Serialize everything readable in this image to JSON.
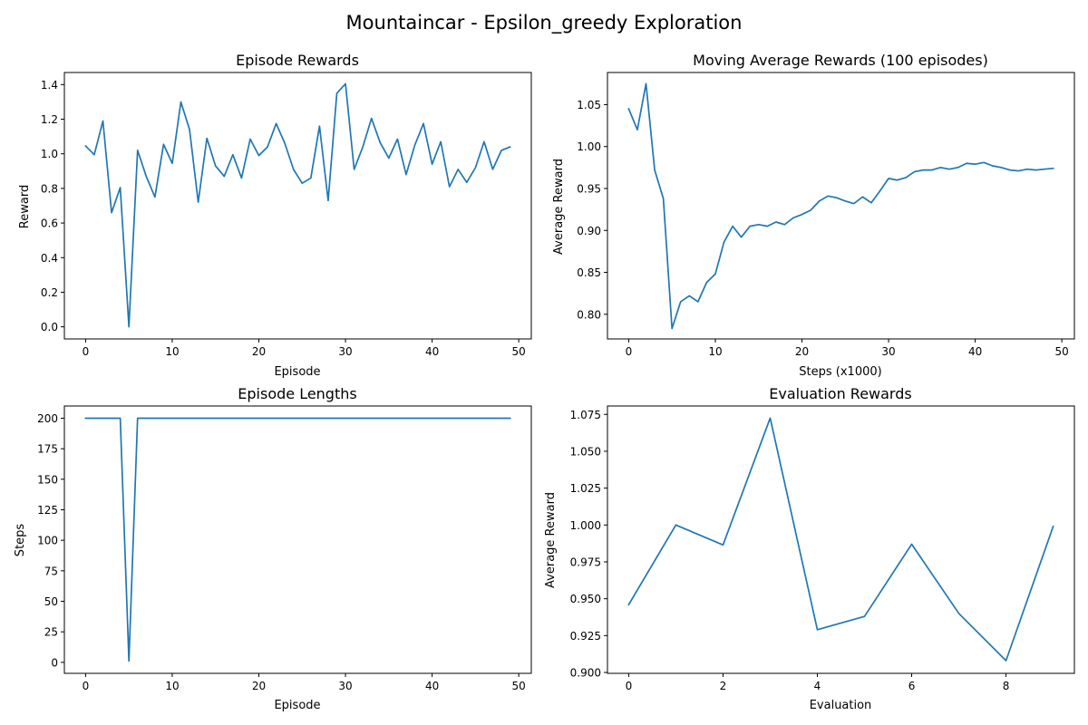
{
  "figure": {
    "title": "Mountaincar - Epsilon_greedy Exploration"
  },
  "line_color": "#1f77b4",
  "chart_data": [
    {
      "type": "line",
      "title": "Episode Rewards",
      "xlabel": "Episode",
      "ylabel": "Reward",
      "xlim": [
        -2.45,
        51.45
      ],
      "ylim": [
        -0.07,
        1.47
      ],
      "xticks": [
        0,
        10,
        20,
        30,
        40,
        50
      ],
      "xtick_labels": [
        "0",
        "10",
        "20",
        "30",
        "40",
        "50"
      ],
      "yticks": [
        0.0,
        0.2,
        0.4,
        0.6,
        0.8,
        1.0,
        1.2,
        1.4
      ],
      "ytick_labels": [
        "0.0",
        "0.2",
        "0.4",
        "0.6",
        "0.8",
        "1.0",
        "1.2",
        "1.4"
      ],
      "x": [
        0,
        1,
        2,
        3,
        4,
        5,
        6,
        7,
        8,
        9,
        10,
        11,
        12,
        13,
        14,
        15,
        16,
        17,
        18,
        19,
        20,
        21,
        22,
        23,
        24,
        25,
        26,
        27,
        28,
        29,
        30,
        31,
        32,
        33,
        34,
        35,
        36,
        37,
        38,
        39,
        40,
        41,
        42,
        43,
        44,
        45,
        46,
        47,
        48,
        49
      ],
      "y": [
        1.045,
        0.995,
        1.19,
        0.66,
        0.805,
        0.0,
        1.02,
        0.87,
        0.75,
        1.055,
        0.945,
        1.3,
        1.14,
        0.72,
        1.09,
        0.93,
        0.87,
        0.995,
        0.86,
        1.085,
        0.99,
        1.04,
        1.175,
        1.06,
        0.91,
        0.83,
        0.86,
        1.16,
        0.73,
        1.35,
        1.405,
        0.91,
        1.04,
        1.205,
        1.065,
        0.975,
        1.085,
        0.88,
        1.05,
        1.175,
        0.94,
        1.07,
        0.81,
        0.91,
        0.835,
        0.92,
        1.07,
        0.91,
        1.02,
        1.04
      ]
    },
    {
      "type": "line",
      "title": "Moving Average Rewards (100 episodes)",
      "xlabel": "Steps (x1000)",
      "ylabel": "Average Reward",
      "xlim": [
        -2.45,
        51.45
      ],
      "ylim": [
        0.7706,
        1.0883
      ],
      "xticks": [
        0,
        10,
        20,
        30,
        40,
        50
      ],
      "xtick_labels": [
        "0",
        "10",
        "20",
        "30",
        "40",
        "50"
      ],
      "yticks": [
        0.8,
        0.85,
        0.9,
        0.95,
        1.0,
        1.05
      ],
      "ytick_labels": [
        "0.80",
        "0.85",
        "0.90",
        "0.95",
        "1.00",
        "1.05"
      ],
      "x": [
        0,
        1,
        2,
        3,
        4,
        5,
        6,
        7,
        8,
        9,
        10,
        11,
        12,
        13,
        14,
        15,
        16,
        17,
        18,
        19,
        20,
        21,
        22,
        23,
        24,
        25,
        26,
        27,
        28,
        29,
        30,
        31,
        32,
        33,
        34,
        35,
        36,
        37,
        38,
        39,
        40,
        41,
        42,
        43,
        44,
        45,
        46,
        47,
        48,
        49
      ],
      "y": [
        1.045,
        1.02,
        1.075,
        0.972,
        0.938,
        0.783,
        0.815,
        0.822,
        0.815,
        0.838,
        0.848,
        0.886,
        0.905,
        0.892,
        0.905,
        0.907,
        0.905,
        0.91,
        0.907,
        0.915,
        0.919,
        0.924,
        0.935,
        0.941,
        0.939,
        0.935,
        0.932,
        0.94,
        0.933,
        0.947,
        0.962,
        0.96,
        0.963,
        0.97,
        0.972,
        0.972,
        0.975,
        0.973,
        0.975,
        0.98,
        0.979,
        0.981,
        0.977,
        0.975,
        0.972,
        0.971,
        0.973,
        0.972,
        0.973,
        0.974
      ]
    },
    {
      "type": "line",
      "title": "Episode Lengths",
      "xlabel": "Episode",
      "ylabel": "Steps",
      "xlim": [
        -2.45,
        51.45
      ],
      "ylim": [
        -9.0,
        210.0
      ],
      "xticks": [
        0,
        10,
        20,
        30,
        40,
        50
      ],
      "xtick_labels": [
        "0",
        "10",
        "20",
        "30",
        "40",
        "50"
      ],
      "yticks": [
        0,
        25,
        50,
        75,
        100,
        125,
        150,
        175,
        200
      ],
      "ytick_labels": [
        "0",
        "25",
        "50",
        "75",
        "100",
        "125",
        "150",
        "175",
        "200"
      ],
      "x": [
        0,
        1,
        2,
        3,
        4,
        5,
        6,
        7,
        8,
        9,
        10,
        11,
        12,
        13,
        14,
        15,
        16,
        17,
        18,
        19,
        20,
        21,
        22,
        23,
        24,
        25,
        26,
        27,
        28,
        29,
        30,
        31,
        32,
        33,
        34,
        35,
        36,
        37,
        38,
        39,
        40,
        41,
        42,
        43,
        44,
        45,
        46,
        47,
        48,
        49
      ],
      "y": [
        200,
        200,
        200,
        200,
        200,
        1,
        200,
        200,
        200,
        200,
        200,
        200,
        200,
        200,
        200,
        200,
        200,
        200,
        200,
        200,
        200,
        200,
        200,
        200,
        200,
        200,
        200,
        200,
        200,
        200,
        200,
        200,
        200,
        200,
        200,
        200,
        200,
        200,
        200,
        200,
        200,
        200,
        200,
        200,
        200,
        200,
        200,
        200,
        200,
        200
      ]
    },
    {
      "type": "line",
      "title": "Evaluation Rewards",
      "xlabel": "Evaluation",
      "ylabel": "Average Reward",
      "xlim": [
        -0.45,
        9.45
      ],
      "ylim": [
        0.8994,
        1.0807
      ],
      "xticks": [
        0,
        2,
        4,
        6,
        8
      ],
      "xtick_labels": [
        "0",
        "2",
        "4",
        "6",
        "8"
      ],
      "yticks": [
        0.9,
        0.925,
        0.95,
        0.975,
        1.0,
        1.025,
        1.05,
        1.075
      ],
      "ytick_labels": [
        "0.900",
        "0.925",
        "0.950",
        "0.975",
        "1.000",
        "1.025",
        "1.050",
        "1.075"
      ],
      "x": [
        0,
        1,
        2,
        3,
        4,
        5,
        6,
        7,
        8,
        9
      ],
      "y": [
        0.946,
        1.0,
        0.9865,
        1.0725,
        0.929,
        0.938,
        0.987,
        0.94,
        0.908,
        0.999
      ]
    }
  ]
}
